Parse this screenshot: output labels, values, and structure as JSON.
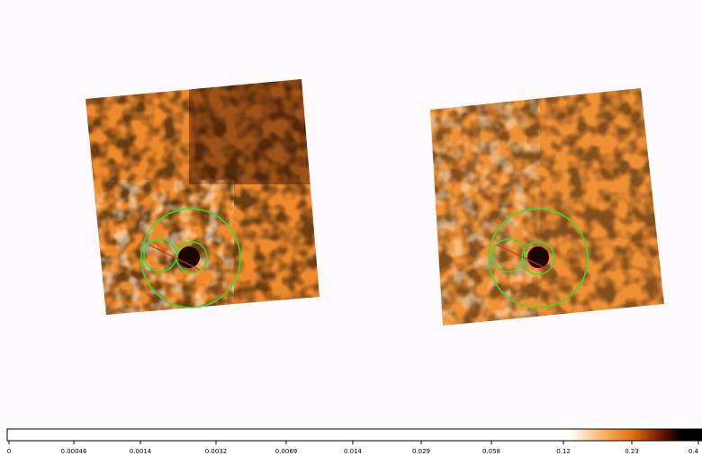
{
  "colorbar": {
    "tick_labels": [
      "0",
      "0.00046",
      "0.0014",
      "0.0032",
      "0.0069",
      "0.014",
      "0.029",
      "0.058",
      "0.12",
      "0.23",
      "0.4"
    ]
  }
}
